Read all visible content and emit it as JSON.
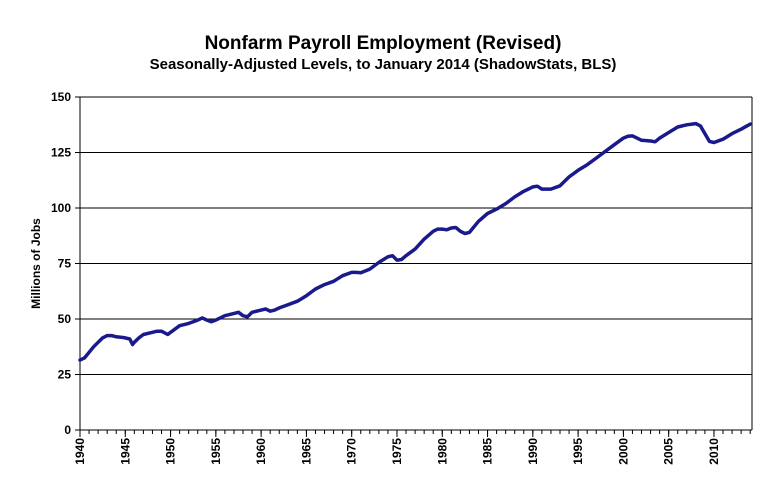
{
  "chart_data": {
    "type": "line",
    "title": "Nonfarm Payroll Employment (Revised)",
    "subtitle": "Seasonally-Adjusted Levels, to January 2014 (ShadowStats, BLS)",
    "xlabel": "",
    "ylabel": "Millions  of Jobs",
    "xlim": [
      1940,
      2014.2
    ],
    "ylim": [
      0,
      150
    ],
    "x_ticks": [
      "1940",
      "1945",
      "1950",
      "1955",
      "1960",
      "1965",
      "1970",
      "1975",
      "1980",
      "1985",
      "1990",
      "1995",
      "2000",
      "2005",
      "2010"
    ],
    "y_ticks": [
      "0",
      "25",
      "50",
      "75",
      "100",
      "125",
      "150"
    ],
    "grid": "horizontal",
    "line_color": "#1a1a8c",
    "series": [
      {
        "x": [
          1940,
          1940.5,
          1941,
          1941.5,
          1942,
          1942.5,
          1943,
          1943.5,
          1944,
          1944.5,
          1945,
          1945.5,
          1945.8,
          1946,
          1946.5,
          1947,
          1948,
          1948.5,
          1949,
          1949.7,
          1950,
          1951,
          1952,
          1953,
          1953.5,
          1954,
          1954.5,
          1955,
          1956,
          1957,
          1957.5,
          1958,
          1958.5,
          1959,
          1960,
          1960.5,
          1961,
          1961.5,
          1962,
          1963,
          1964,
          1965,
          1966,
          1967,
          1968,
          1969,
          1970,
          1970.5,
          1971,
          1972,
          1973,
          1974,
          1974.5,
          1975,
          1975.5,
          1976,
          1977,
          1978,
          1979,
          1979.5,
          1980,
          1980.5,
          1981,
          1981.5,
          1982,
          1982.5,
          1983,
          1984,
          1985,
          1986,
          1987,
          1988,
          1989,
          1990,
          1990.5,
          1991,
          1992,
          1993,
          1994,
          1995,
          1996,
          1997,
          1998,
          1999,
          2000,
          2000.5,
          2001,
          2001.5,
          2002,
          2003,
          2003.5,
          2004,
          2005,
          2006,
          2007,
          2008,
          2008.5,
          2009,
          2009.5,
          2010,
          2011,
          2012,
          2013,
          2014
        ],
        "values": [
          31.5,
          32.5,
          35,
          37.5,
          39.5,
          41.5,
          42.5,
          42.5,
          42,
          41.8,
          41.5,
          41,
          38.5,
          39.5,
          41.5,
          43,
          44,
          44.5,
          44.5,
          43,
          44,
          47,
          48,
          49.5,
          50.5,
          49.5,
          48.8,
          49.5,
          51.5,
          52.5,
          53,
          51.5,
          51,
          53,
          54,
          54.5,
          53.5,
          54,
          55,
          56.5,
          58,
          60.5,
          63.5,
          65.5,
          67,
          69.5,
          71,
          71,
          70.8,
          72.5,
          75.5,
          78,
          78.5,
          76.5,
          76.8,
          78.5,
          81.5,
          86,
          89.5,
          90.5,
          90.5,
          90.2,
          91,
          91.2,
          89.5,
          88.5,
          89,
          94,
          97.5,
          99.5,
          102,
          105,
          107.5,
          109.5,
          109.8,
          108.5,
          108.5,
          110,
          114,
          117,
          119.5,
          122.5,
          125.5,
          128.5,
          131.5,
          132.3,
          132.5,
          131.5,
          130.5,
          130.2,
          129.8,
          131.5,
          134,
          136.5,
          137.5,
          138,
          137,
          133.5,
          130,
          129.5,
          131,
          133.5,
          135.5,
          137.8
        ]
      }
    ]
  }
}
